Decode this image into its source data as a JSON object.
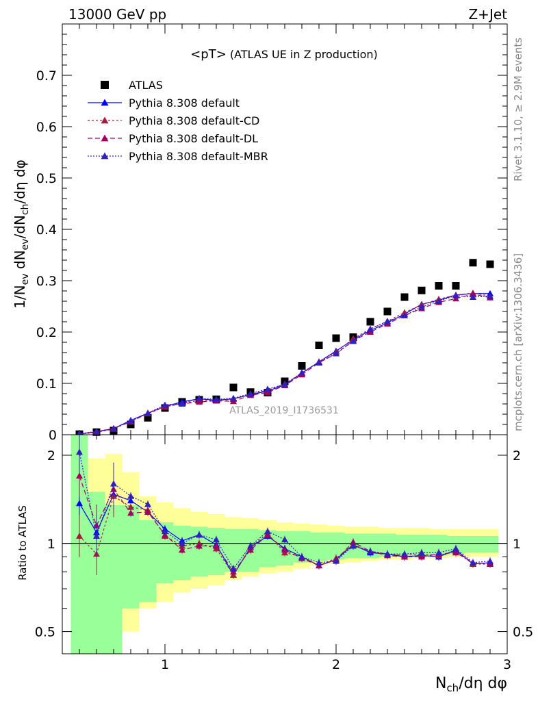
{
  "header": {
    "left": "13000 GeV pp",
    "right": "Z+Jet"
  },
  "side": {
    "top": "Rivet 3.1.10, ≥ 2.9M events",
    "bottom": "mcplots.cern.ch [arXiv:1306.3436]"
  },
  "chart_data": [
    {
      "type": "scatter",
      "title": "<pT> (ATLAS UE in Z production)",
      "title_main": "<pT>",
      "title_sub": "(ATLAS UE in Z production)",
      "watermark": "ATLAS_2019_I1736531",
      "xlim": [
        0.4,
        3.0
      ],
      "ylim": [
        0,
        0.8
      ],
      "ylabel_parts": [
        "1/N",
        "ev",
        " dN",
        "ev",
        "/dN",
        "ch",
        "/dη dφ"
      ],
      "yticks": [
        0,
        0.1,
        0.2,
        0.3,
        0.4,
        0.5,
        0.6,
        0.7
      ],
      "ytick_labels": [
        "0",
        "0.1",
        "0.2",
        "0.3",
        "0.4",
        "0.5",
        "0.6",
        "0.7"
      ],
      "legend_position": "top-left",
      "x": [
        0.5,
        0.6,
        0.7,
        0.8,
        0.9,
        1.0,
        1.1,
        1.2,
        1.3,
        1.4,
        1.5,
        1.6,
        1.7,
        1.8,
        1.9,
        2.0,
        2.1,
        2.2,
        2.3,
        2.4,
        2.5,
        2.6,
        2.7,
        2.8,
        2.9
      ],
      "series": [
        {
          "name": "ATLAS",
          "color": "#000000",
          "marker": "square",
          "values": [
            0.001,
            0.005,
            0.008,
            0.02,
            0.033,
            0.052,
            0.064,
            0.068,
            0.069,
            0.092,
            0.083,
            0.082,
            0.104,
            0.134,
            0.174,
            0.188,
            0.19,
            0.22,
            0.24,
            0.268,
            0.281,
            0.29,
            0.29,
            0.335,
            0.332
          ]
        },
        {
          "name": "Pythia 8.308 default",
          "color": "#0000ff",
          "dash": "",
          "marker": "triangle",
          "values": [
            0.0012,
            0.0055,
            0.012,
            0.028,
            0.042,
            0.055,
            0.064,
            0.07,
            0.067,
            0.07,
            0.078,
            0.085,
            0.097,
            0.12,
            0.142,
            0.163,
            0.185,
            0.203,
            0.218,
            0.235,
            0.254,
            0.262,
            0.272,
            0.275,
            0.275
          ]
        },
        {
          "name": "Pythia 8.308 default-CD",
          "color": "#a02040",
          "dash": "3,3",
          "marker": "triangle",
          "values": [
            0.001,
            0.0045,
            0.011,
            0.027,
            0.041,
            0.054,
            0.061,
            0.067,
            0.066,
            0.069,
            0.079,
            0.087,
            0.099,
            0.119,
            0.142,
            0.161,
            0.187,
            0.206,
            0.221,
            0.238,
            0.253,
            0.264,
            0.272,
            0.276,
            0.27
          ]
        },
        {
          "name": "Pythia 8.308 default-DL",
          "color": "#a00060",
          "dash": "7,4",
          "marker": "triangle",
          "values": [
            0.0017,
            0.0058,
            0.0125,
            0.025,
            0.042,
            0.055,
            0.06,
            0.064,
            0.066,
            0.065,
            0.077,
            0.082,
            0.096,
            0.117,
            0.14,
            0.158,
            0.183,
            0.2,
            0.216,
            0.232,
            0.246,
            0.258,
            0.265,
            0.274,
            0.267
          ]
        },
        {
          "name": "Pythia 8.308 default-MBR",
          "color": "#3020c0",
          "dash": "2,2",
          "marker": "triangle",
          "values": [
            0.002,
            0.0065,
            0.0115,
            0.027,
            0.042,
            0.058,
            0.061,
            0.071,
            0.069,
            0.071,
            0.08,
            0.089,
            0.098,
            0.121,
            0.141,
            0.158,
            0.182,
            0.206,
            0.221,
            0.232,
            0.249,
            0.26,
            0.271,
            0.268,
            0.27
          ]
        }
      ]
    },
    {
      "type": "line",
      "xlabel": "N_ch/dη dφ",
      "xlabel_main": "N",
      "xlabel_sub": "ch",
      "xlabel_rest": "/dη dφ",
      "ylabel": "Ratio to ATLAS",
      "log_y": true,
      "ylim": [
        0.42,
        2.35
      ],
      "yticks": [
        0.5,
        1,
        2
      ],
      "ytick_labels": [
        "0.5",
        "1",
        "2"
      ],
      "xticks": [
        1,
        2,
        3
      ],
      "xtick_labels": [
        "1",
        "2",
        "3"
      ],
      "x": [
        0.5,
        0.6,
        0.7,
        0.8,
        0.9,
        1.0,
        1.1,
        1.2,
        1.3,
        1.4,
        1.5,
        1.6,
        1.7,
        1.8,
        1.9,
        2.0,
        2.1,
        2.2,
        2.3,
        2.4,
        2.5,
        2.6,
        2.7,
        2.8,
        2.9
      ],
      "bands": {
        "inner": [
          [
            0.4,
            2.5
          ],
          [
            0.38,
            1.5
          ],
          [
            0.42,
            1.35
          ],
          [
            0.6,
            1.35
          ],
          [
            0.63,
            1.2
          ],
          [
            0.73,
            1.18
          ],
          [
            0.75,
            1.15
          ],
          [
            0.77,
            1.14
          ],
          [
            0.78,
            1.13
          ],
          [
            0.8,
            1.12
          ],
          [
            0.8,
            1.12
          ],
          [
            0.83,
            1.11
          ],
          [
            0.84,
            1.1
          ],
          [
            0.86,
            1.1
          ],
          [
            0.87,
            1.09
          ],
          [
            0.88,
            1.09
          ],
          [
            0.89,
            1.08
          ],
          [
            0.89,
            1.08
          ],
          [
            0.9,
            1.08
          ],
          [
            0.9,
            1.07
          ],
          [
            0.91,
            1.07
          ],
          [
            0.91,
            1.07
          ],
          [
            0.92,
            1.06
          ],
          [
            0.93,
            1.06
          ],
          [
            0.93,
            1.06
          ]
        ],
        "outer": [
          [
            0.4,
            2.5
          ],
          [
            0.38,
            1.95
          ],
          [
            0.42,
            2.02
          ],
          [
            0.5,
            1.75
          ],
          [
            0.6,
            1.45
          ],
          [
            0.63,
            1.38
          ],
          [
            0.68,
            1.32
          ],
          [
            0.7,
            1.28
          ],
          [
            0.72,
            1.26
          ],
          [
            0.75,
            1.23
          ],
          [
            0.77,
            1.22
          ],
          [
            0.79,
            1.2
          ],
          [
            0.8,
            1.18
          ],
          [
            0.82,
            1.17
          ],
          [
            0.84,
            1.16
          ],
          [
            0.85,
            1.15
          ],
          [
            0.86,
            1.14
          ],
          [
            0.87,
            1.14
          ],
          [
            0.88,
            1.13
          ],
          [
            0.88,
            1.13
          ],
          [
            0.89,
            1.13
          ],
          [
            0.89,
            1.12
          ],
          [
            0.9,
            1.12
          ],
          [
            0.9,
            1.12
          ],
          [
            0.9,
            1.12
          ]
        ]
      },
      "series": [
        {
          "name": "Pythia 8.308 default",
          "color": "#0000ff",
          "values": [
            1.37,
            1.09,
            1.47,
            1.4,
            1.28,
            1.12,
            1.02,
            1.07,
            0.99,
            0.78,
            0.97,
            1.06,
            0.96,
            0.9,
            0.84,
            0.88,
            0.99,
            0.93,
            0.92,
            0.9,
            0.91,
            0.9,
            0.95,
            0.85,
            0.86
          ]
        },
        {
          "name": "Pythia 8.308 default-CD",
          "color": "#a02040",
          "values": [
            1.06,
            0.92,
            1.45,
            1.33,
            1.3,
            1.06,
            0.98,
            1.0,
            0.96,
            0.78,
            0.97,
            1.08,
            0.93,
            0.9,
            0.84,
            0.89,
            0.99,
            0.94,
            0.92,
            0.91,
            0.92,
            0.91,
            0.94,
            0.85,
            0.85
          ]
        },
        {
          "name": "Pythia 8.308 default-DL",
          "color": "#a00060",
          "values": [
            1.7,
            1.15,
            1.53,
            1.27,
            1.28,
            1.07,
            0.95,
            0.98,
            0.98,
            0.8,
            0.95,
            1.07,
            0.95,
            0.89,
            0.84,
            0.88,
            1.01,
            0.94,
            0.91,
            0.9,
            0.9,
            0.92,
            0.93,
            0.86,
            0.85
          ]
        },
        {
          "name": "Pythia 8.308 default-MBR",
          "color": "#3020c0",
          "values": [
            2.05,
            1.06,
            1.6,
            1.45,
            1.36,
            1.1,
            1.0,
            1.07,
            1.03,
            0.82,
            0.98,
            1.1,
            1.03,
            0.9,
            0.86,
            0.87,
            0.98,
            0.94,
            0.92,
            0.92,
            0.93,
            0.93,
            0.96,
            0.86,
            0.87
          ]
        }
      ]
    }
  ]
}
